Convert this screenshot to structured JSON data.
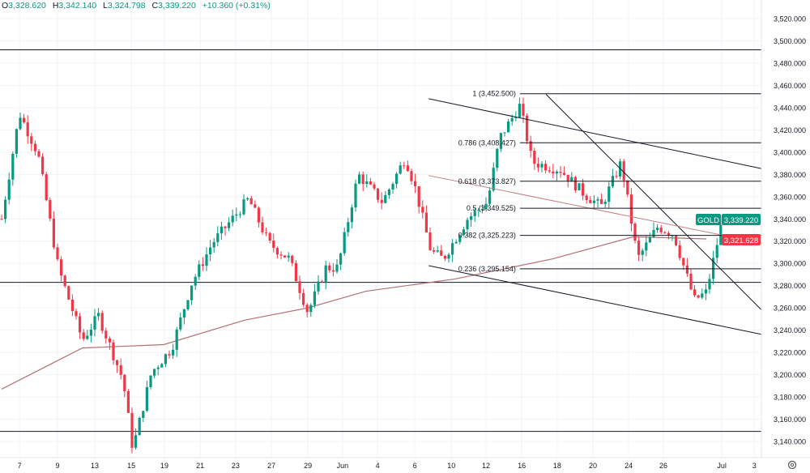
{
  "header": {
    "open_label": "O",
    "open": "3,328.620",
    "high_label": "H",
    "high": "3,342.140",
    "low_label": "L",
    "low": "3,324.798",
    "close_label": "C",
    "close": "3,339.220",
    "change": "+10.360 (+0.31%)"
  },
  "price_tags": {
    "symbol": "GOLD",
    "last_price": "3,339.220",
    "ma_value": "3,321.628"
  },
  "colors": {
    "up": "#089981",
    "down": "#f23645",
    "ma": "#b07070",
    "line": "#131722",
    "grid": "#f0f3fa"
  },
  "settings_icon": "gear-icon",
  "chart_data": {
    "type": "candlestick",
    "ylim": [
      3130,
      3530
    ],
    "y_ticks": [
      "3,140.000",
      "3,160.000",
      "3,180.000",
      "3,200.000",
      "3,220.000",
      "3,240.000",
      "3,260.000",
      "3,280.000",
      "3,300.000",
      "3,320.000",
      "3,340.000",
      "3,360.000",
      "3,380.000",
      "3,400.000",
      "3,420.000",
      "3,440.000",
      "3,460.000",
      "3,480.000",
      "3,500.000",
      "3,520.000"
    ],
    "y_tick_values": [
      3140,
      3160,
      3180,
      3200,
      3220,
      3240,
      3260,
      3280,
      3300,
      3320,
      3340,
      3360,
      3380,
      3400,
      3420,
      3440,
      3460,
      3480,
      3500,
      3520
    ],
    "x_ticks": [
      {
        "label": "7",
        "bar": 4.8
      },
      {
        "label": "9",
        "bar": 15
      },
      {
        "label": "13",
        "bar": 25
      },
      {
        "label": "15",
        "bar": 34.8
      },
      {
        "label": "19",
        "bar": 43.7
      },
      {
        "label": "21",
        "bar": 53.3
      },
      {
        "label": "23",
        "bar": 62.8
      },
      {
        "label": "27",
        "bar": 72.4
      },
      {
        "label": "29",
        "bar": 82.2
      },
      {
        "label": "Jun",
        "bar": 91.5
      },
      {
        "label": "4",
        "bar": 100.9
      },
      {
        "label": "6",
        "bar": 110.9
      },
      {
        "label": "10",
        "bar": 120.7
      },
      {
        "label": "12",
        "bar": 130
      },
      {
        "label": "16",
        "bar": 139.6
      },
      {
        "label": "18",
        "bar": 149.1
      },
      {
        "label": "20",
        "bar": 158.7
      },
      {
        "label": "24",
        "bar": 168.3
      },
      {
        "label": "26",
        "bar": 177.6
      },
      {
        "label": "Jul",
        "bar": 193.3
      },
      {
        "label": "3",
        "bar": 202
      }
    ],
    "price_path": [
      [
        0,
        3340
      ],
      [
        4.8,
        3435
      ],
      [
        9.8,
        3398
      ],
      [
        15.2,
        3296
      ],
      [
        21.7,
        3231
      ],
      [
        26,
        3253
      ],
      [
        32.6,
        3195
      ],
      [
        35.2,
        3133
      ],
      [
        40.2,
        3202
      ],
      [
        45.7,
        3224
      ],
      [
        51,
        3282
      ],
      [
        56.5,
        3318
      ],
      [
        66.3,
        3358
      ],
      [
        71.7,
        3318
      ],
      [
        77.2,
        3304
      ],
      [
        82.2,
        3256
      ],
      [
        87,
        3296
      ],
      [
        90.2,
        3296
      ],
      [
        95.7,
        3380
      ],
      [
        102.2,
        3355
      ],
      [
        108.3,
        3395
      ],
      [
        110.9,
        3369
      ],
      [
        115.2,
        3311
      ],
      [
        118.5,
        3304
      ],
      [
        125,
        3340
      ],
      [
        130.4,
        3355
      ],
      [
        133.7,
        3413
      ],
      [
        139.1,
        3442
      ],
      [
        142.4,
        3391
      ],
      [
        150,
        3384
      ],
      [
        156.5,
        3362
      ],
      [
        160.9,
        3351
      ],
      [
        166.3,
        3391
      ],
      [
        170.7,
        3304
      ],
      [
        176.1,
        3333
      ],
      [
        180.4,
        3326
      ],
      [
        185.9,
        3267
      ],
      [
        189.1,
        3274
      ],
      [
        193.5,
        3340
      ]
    ],
    "moving_average": [
      [
        0,
        3187
      ],
      [
        21.7,
        3224
      ],
      [
        43.5,
        3227
      ],
      [
        65.2,
        3249
      ],
      [
        82.2,
        3260
      ],
      [
        97.8,
        3275
      ],
      [
        121.7,
        3286
      ],
      [
        147.8,
        3304
      ],
      [
        169.6,
        3324
      ],
      [
        189.1,
        3322
      ]
    ],
    "horizontal_levels": [
      3492,
      3283,
      3149
    ],
    "fibonacci": {
      "start_bar": 139.1,
      "end_bar": 204.3,
      "levels": [
        {
          "ratio": "1",
          "price": 3452.5,
          "label": "1 (3,452.500)"
        },
        {
          "ratio": "0.786",
          "price": 3408.427,
          "label": "0.786 (3,408.427)"
        },
        {
          "ratio": "0.618",
          "price": 3373.827,
          "label": "0.618 (3,373.827)"
        },
        {
          "ratio": "0.5",
          "price": 3349.525,
          "label": "0.5 (3,349.525)"
        },
        {
          "ratio": "0.382",
          "price": 3325.223,
          "label": "0.382 (3,325.223)"
        },
        {
          "ratio": "0.236",
          "price": 3295.154,
          "label": "0.236 (3,295.154)"
        }
      ]
    },
    "trendlines": [
      {
        "from": [
          114.6,
          3448
        ],
        "to": [
          204.3,
          3385
        ],
        "color": "#131722"
      },
      {
        "from": [
          114.6,
          3298
        ],
        "to": [
          204.3,
          3236
        ],
        "color": "#131722"
      },
      {
        "from": [
          146.1,
          3452
        ],
        "to": [
          204.3,
          3257
        ],
        "color": "#131722"
      },
      {
        "from": [
          114.6,
          3379
        ],
        "to": [
          204.3,
          3318
        ],
        "color": "#c08080"
      }
    ]
  }
}
